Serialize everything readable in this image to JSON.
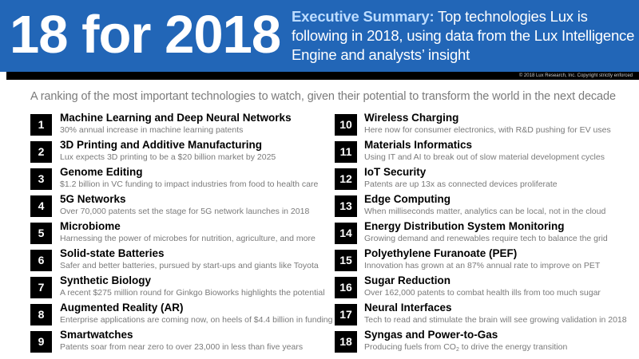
{
  "header": {
    "big_title": "18 for 2018",
    "summary_label": "Executive Summary:",
    "summary_text": " Top technologies Lux is following in 2018, using data from the Lux Intelligence Engine and analysts’ insight",
    "copyright": "© 2018 Lux Research, Inc. Copyright strictly enforced"
  },
  "subtitle": "A ranking of the most important technologies to watch, given their potential to transform the world in the next decade",
  "colors": {
    "header_bg": "#2266b7",
    "summary_label": "#bcdcff",
    "number_box": "#000000",
    "desc_text": "#7a7a7a"
  },
  "items": [
    {
      "num": "1",
      "title": "Machine Learning and Deep Neural Networks",
      "desc": "30% annual increase in machine learning patents"
    },
    {
      "num": "2",
      "title": "3D Printing and Additive Manufacturing",
      "desc": "Lux expects 3D printing to be a $20 billion market by 2025"
    },
    {
      "num": "3",
      "title": "Genome Editing",
      "desc": "$1.2 billion in VC funding to impact industries from food to health care"
    },
    {
      "num": "4",
      "title": "5G Networks",
      "desc": "Over 70,000 patents set the stage for 5G network launches in 2018"
    },
    {
      "num": "5",
      "title": "Microbiome",
      "desc": "Harnessing the power of microbes for nutrition, agriculture, and more"
    },
    {
      "num": "6",
      "title": "Solid-state Batteries",
      "desc": "Safer and better batteries, pursued by start-ups and giants like Toyota"
    },
    {
      "num": "7",
      "title": "Synthetic Biology",
      "desc": "A recent $275 million round for Ginkgo Bioworks highlights the potential"
    },
    {
      "num": "8",
      "title": "Augmented Reality (AR)",
      "desc": "Enterprise applications are coming now, on heels of $4.4 billion in funding"
    },
    {
      "num": "9",
      "title": "Smartwatches",
      "desc": "Patents soar from near zero to over 23,000 in less than five years"
    },
    {
      "num": "10",
      "title": "Wireless Charging",
      "desc": "Here now for consumer electronics, with R&D pushing for EV uses"
    },
    {
      "num": "11",
      "title": "Materials Informatics",
      "desc": "Using IT and AI to break out of slow material development cycles"
    },
    {
      "num": "12",
      "title": "IoT Security",
      "desc": "Patents are up 13x as connected devices proliferate"
    },
    {
      "num": "13",
      "title": "Edge Computing",
      "desc": "When milliseconds matter, analytics can be local, not in the cloud"
    },
    {
      "num": "14",
      "title": "Energy Distribution System Monitoring",
      "desc": "Growing demand and renewables require tech to balance the grid"
    },
    {
      "num": "15",
      "title": "Polyethylene Furanoate (PEF)",
      "desc": "Innovation has grown at an 87% annual rate to improve on PET"
    },
    {
      "num": "16",
      "title": "Sugar Reduction",
      "desc": "Over 162,000 patents to combat health ills from too much sugar"
    },
    {
      "num": "17",
      "title": "Neural Interfaces",
      "desc": "Tech to read and stimulate the brain will see growing validation in 2018"
    },
    {
      "num": "18",
      "title": "Syngas and Power-to-Gas",
      "desc_pre": "Producing fuels from CO",
      "desc_sub": "2",
      "desc_post": " to drive the energy transition"
    }
  ]
}
